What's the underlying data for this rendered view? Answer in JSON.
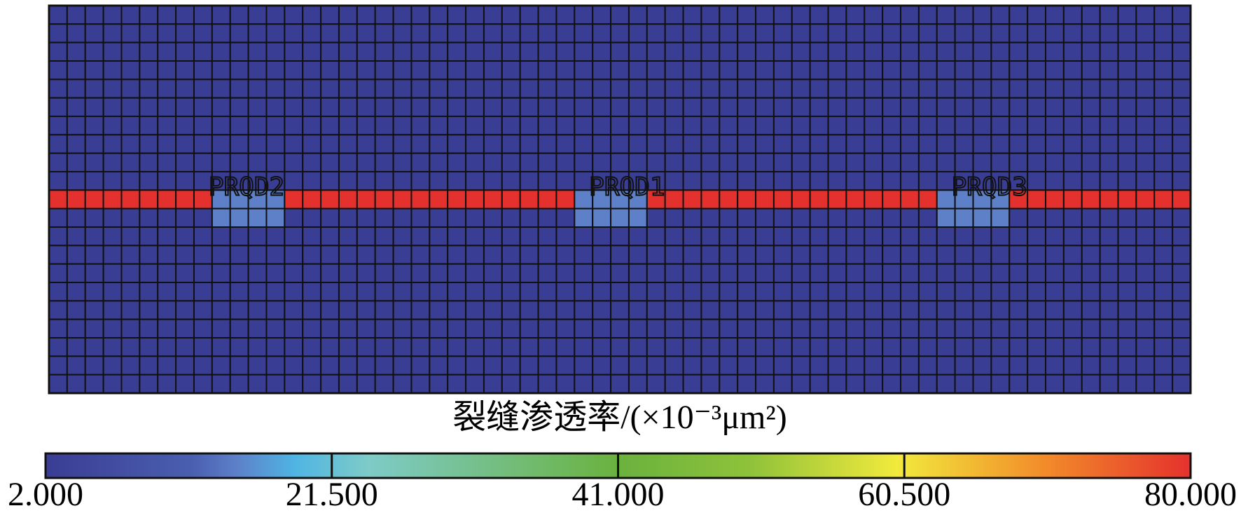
{
  "chart_data": {
    "type": "heatmap",
    "wells": [
      "PRQD2",
      "PRQD1",
      "PRQD3"
    ],
    "z": [
      [
        2,
        2,
        2,
        2,
        2,
        2,
        2,
        2,
        2,
        2,
        2,
        2,
        2,
        2,
        2,
        2,
        2,
        2,
        2,
        2,
        2,
        2,
        2,
        2,
        2,
        2,
        2,
        2,
        2,
        2,
        2,
        2,
        2,
        2,
        2,
        2,
        2,
        2,
        2,
        2,
        2,
        2,
        2,
        2,
        2,
        2,
        2,
        2,
        2,
        2,
        2,
        2,
        2,
        2,
        2,
        2,
        2,
        2,
        2,
        2,
        2,
        2,
        2
      ],
      [
        2,
        2,
        2,
        2,
        2,
        2,
        2,
        2,
        2,
        2,
        2,
        2,
        2,
        2,
        2,
        2,
        2,
        2,
        2,
        2,
        2,
        2,
        2,
        2,
        2,
        2,
        2,
        2,
        2,
        2,
        2,
        2,
        2,
        2,
        2,
        2,
        2,
        2,
        2,
        2,
        2,
        2,
        2,
        2,
        2,
        2,
        2,
        2,
        2,
        2,
        2,
        2,
        2,
        2,
        2,
        2,
        2,
        2,
        2,
        2,
        2,
        2,
        2
      ],
      [
        2,
        2,
        2,
        2,
        2,
        2,
        2,
        2,
        2,
        2,
        2,
        2,
        2,
        2,
        2,
        2,
        2,
        2,
        2,
        2,
        2,
        2,
        2,
        2,
        2,
        2,
        2,
        2,
        2,
        2,
        2,
        2,
        2,
        2,
        2,
        2,
        2,
        2,
        2,
        2,
        2,
        2,
        2,
        2,
        2,
        2,
        2,
        2,
        2,
        2,
        2,
        2,
        2,
        2,
        2,
        2,
        2,
        2,
        2,
        2,
        2,
        2,
        2
      ],
      [
        2,
        2,
        2,
        2,
        2,
        2,
        2,
        2,
        2,
        2,
        2,
        2,
        2,
        2,
        2,
        2,
        2,
        2,
        2,
        2,
        2,
        2,
        2,
        2,
        2,
        2,
        2,
        2,
        2,
        2,
        2,
        2,
        2,
        2,
        2,
        2,
        2,
        2,
        2,
        2,
        2,
        2,
        2,
        2,
        2,
        2,
        2,
        2,
        2,
        2,
        2,
        2,
        2,
        2,
        2,
        2,
        2,
        2,
        2,
        2,
        2,
        2,
        2
      ],
      [
        2,
        2,
        2,
        2,
        2,
        2,
        2,
        2,
        2,
        2,
        2,
        2,
        2,
        2,
        2,
        2,
        2,
        2,
        2,
        2,
        2,
        2,
        2,
        2,
        2,
        2,
        2,
        2,
        2,
        2,
        2,
        2,
        2,
        2,
        2,
        2,
        2,
        2,
        2,
        2,
        2,
        2,
        2,
        2,
        2,
        2,
        2,
        2,
        2,
        2,
        2,
        2,
        2,
        2,
        2,
        2,
        2,
        2,
        2,
        2,
        2,
        2,
        2
      ],
      [
        2,
        2,
        2,
        2,
        2,
        2,
        2,
        2,
        2,
        2,
        2,
        2,
        2,
        2,
        2,
        2,
        2,
        2,
        2,
        2,
        2,
        2,
        2,
        2,
        2,
        2,
        2,
        2,
        2,
        2,
        2,
        2,
        2,
        2,
        2,
        2,
        2,
        2,
        2,
        2,
        2,
        2,
        2,
        2,
        2,
        2,
        2,
        2,
        2,
        2,
        2,
        2,
        2,
        2,
        2,
        2,
        2,
        2,
        2,
        2,
        2,
        2,
        2
      ],
      [
        2,
        2,
        2,
        2,
        2,
        2,
        2,
        2,
        2,
        2,
        2,
        2,
        2,
        2,
        2,
        2,
        2,
        2,
        2,
        2,
        2,
        2,
        2,
        2,
        2,
        2,
        2,
        2,
        2,
        2,
        2,
        2,
        2,
        2,
        2,
        2,
        2,
        2,
        2,
        2,
        2,
        2,
        2,
        2,
        2,
        2,
        2,
        2,
        2,
        2,
        2,
        2,
        2,
        2,
        2,
        2,
        2,
        2,
        2,
        2,
        2,
        2,
        2
      ],
      [
        2,
        2,
        2,
        2,
        2,
        2,
        2,
        2,
        2,
        2,
        2,
        2,
        2,
        2,
        2,
        2,
        2,
        2,
        2,
        2,
        2,
        2,
        2,
        2,
        2,
        2,
        2,
        2,
        2,
        2,
        2,
        2,
        2,
        2,
        2,
        2,
        2,
        2,
        2,
        2,
        2,
        2,
        2,
        2,
        2,
        2,
        2,
        2,
        2,
        2,
        2,
        2,
        2,
        2,
        2,
        2,
        2,
        2,
        2,
        2,
        2,
        2,
        2
      ],
      [
        2,
        2,
        2,
        2,
        2,
        2,
        2,
        2,
        2,
        2,
        2,
        2,
        2,
        2,
        2,
        2,
        2,
        2,
        2,
        2,
        2,
        2,
        2,
        2,
        2,
        2,
        2,
        2,
        2,
        2,
        2,
        2,
        2,
        2,
        2,
        2,
        2,
        2,
        2,
        2,
        2,
        2,
        2,
        2,
        2,
        2,
        2,
        2,
        2,
        2,
        2,
        2,
        2,
        2,
        2,
        2,
        2,
        2,
        2,
        2,
        2,
        2,
        2
      ],
      [
        2,
        2,
        2,
        2,
        2,
        2,
        2,
        2,
        2,
        2,
        2,
        2,
        2,
        2,
        2,
        2,
        2,
        2,
        2,
        2,
        2,
        2,
        2,
        2,
        2,
        2,
        2,
        2,
        2,
        2,
        2,
        2,
        2,
        2,
        2,
        2,
        2,
        2,
        2,
        2,
        2,
        2,
        2,
        2,
        2,
        2,
        2,
        2,
        2,
        2,
        2,
        2,
        2,
        2,
        2,
        2,
        2,
        2,
        2,
        2,
        2,
        2,
        2
      ],
      [
        80,
        80,
        80,
        80,
        80,
        80,
        80,
        80,
        80,
        15,
        15,
        15,
        15,
        80,
        80,
        80,
        80,
        80,
        80,
        80,
        80,
        80,
        80,
        80,
        80,
        80,
        80,
        80,
        80,
        15,
        15,
        15,
        15,
        80,
        80,
        80,
        80,
        80,
        80,
        80,
        80,
        80,
        80,
        80,
        80,
        80,
        80,
        80,
        80,
        15,
        15,
        15,
        15,
        80,
        80,
        80,
        80,
        80,
        80,
        80,
        80,
        80,
        80
      ],
      [
        2,
        2,
        2,
        2,
        2,
        2,
        2,
        2,
        2,
        15,
        15,
        15,
        15,
        2,
        2,
        2,
        2,
        2,
        2,
        2,
        2,
        2,
        2,
        2,
        2,
        2,
        2,
        2,
        2,
        15,
        15,
        15,
        15,
        2,
        2,
        2,
        2,
        2,
        2,
        2,
        2,
        2,
        2,
        2,
        2,
        2,
        2,
        2,
        2,
        15,
        15,
        15,
        15,
        2,
        2,
        2,
        2,
        2,
        2,
        2,
        2,
        2,
        2
      ],
      [
        2,
        2,
        2,
        2,
        2,
        2,
        2,
        2,
        2,
        2,
        2,
        2,
        2,
        2,
        2,
        2,
        2,
        2,
        2,
        2,
        2,
        2,
        2,
        2,
        2,
        2,
        2,
        2,
        2,
        2,
        2,
        2,
        2,
        2,
        2,
        2,
        2,
        2,
        2,
        2,
        2,
        2,
        2,
        2,
        2,
        2,
        2,
        2,
        2,
        2,
        2,
        2,
        2,
        2,
        2,
        2,
        2,
        2,
        2,
        2,
        2,
        2,
        2
      ],
      [
        2,
        2,
        2,
        2,
        2,
        2,
        2,
        2,
        2,
        2,
        2,
        2,
        2,
        2,
        2,
        2,
        2,
        2,
        2,
        2,
        2,
        2,
        2,
        2,
        2,
        2,
        2,
        2,
        2,
        2,
        2,
        2,
        2,
        2,
        2,
        2,
        2,
        2,
        2,
        2,
        2,
        2,
        2,
        2,
        2,
        2,
        2,
        2,
        2,
        2,
        2,
        2,
        2,
        2,
        2,
        2,
        2,
        2,
        2,
        2,
        2,
        2,
        2
      ],
      [
        2,
        2,
        2,
        2,
        2,
        2,
        2,
        2,
        2,
        2,
        2,
        2,
        2,
        2,
        2,
        2,
        2,
        2,
        2,
        2,
        2,
        2,
        2,
        2,
        2,
        2,
        2,
        2,
        2,
        2,
        2,
        2,
        2,
        2,
        2,
        2,
        2,
        2,
        2,
        2,
        2,
        2,
        2,
        2,
        2,
        2,
        2,
        2,
        2,
        2,
        2,
        2,
        2,
        2,
        2,
        2,
        2,
        2,
        2,
        2,
        2,
        2,
        2
      ],
      [
        2,
        2,
        2,
        2,
        2,
        2,
        2,
        2,
        2,
        2,
        2,
        2,
        2,
        2,
        2,
        2,
        2,
        2,
        2,
        2,
        2,
        2,
        2,
        2,
        2,
        2,
        2,
        2,
        2,
        2,
        2,
        2,
        2,
        2,
        2,
        2,
        2,
        2,
        2,
        2,
        2,
        2,
        2,
        2,
        2,
        2,
        2,
        2,
        2,
        2,
        2,
        2,
        2,
        2,
        2,
        2,
        2,
        2,
        2,
        2,
        2,
        2,
        2
      ],
      [
        2,
        2,
        2,
        2,
        2,
        2,
        2,
        2,
        2,
        2,
        2,
        2,
        2,
        2,
        2,
        2,
        2,
        2,
        2,
        2,
        2,
        2,
        2,
        2,
        2,
        2,
        2,
        2,
        2,
        2,
        2,
        2,
        2,
        2,
        2,
        2,
        2,
        2,
        2,
        2,
        2,
        2,
        2,
        2,
        2,
        2,
        2,
        2,
        2,
        2,
        2,
        2,
        2,
        2,
        2,
        2,
        2,
        2,
        2,
        2,
        2,
        2,
        2
      ],
      [
        2,
        2,
        2,
        2,
        2,
        2,
        2,
        2,
        2,
        2,
        2,
        2,
        2,
        2,
        2,
        2,
        2,
        2,
        2,
        2,
        2,
        2,
        2,
        2,
        2,
        2,
        2,
        2,
        2,
        2,
        2,
        2,
        2,
        2,
        2,
        2,
        2,
        2,
        2,
        2,
        2,
        2,
        2,
        2,
        2,
        2,
        2,
        2,
        2,
        2,
        2,
        2,
        2,
        2,
        2,
        2,
        2,
        2,
        2,
        2,
        2,
        2,
        2
      ],
      [
        2,
        2,
        2,
        2,
        2,
        2,
        2,
        2,
        2,
        2,
        2,
        2,
        2,
        2,
        2,
        2,
        2,
        2,
        2,
        2,
        2,
        2,
        2,
        2,
        2,
        2,
        2,
        2,
        2,
        2,
        2,
        2,
        2,
        2,
        2,
        2,
        2,
        2,
        2,
        2,
        2,
        2,
        2,
        2,
        2,
        2,
        2,
        2,
        2,
        2,
        2,
        2,
        2,
        2,
        2,
        2,
        2,
        2,
        2,
        2,
        2,
        2,
        2
      ],
      [
        2,
        2,
        2,
        2,
        2,
        2,
        2,
        2,
        2,
        2,
        2,
        2,
        2,
        2,
        2,
        2,
        2,
        2,
        2,
        2,
        2,
        2,
        2,
        2,
        2,
        2,
        2,
        2,
        2,
        2,
        2,
        2,
        2,
        2,
        2,
        2,
        2,
        2,
        2,
        2,
        2,
        2,
        2,
        2,
        2,
        2,
        2,
        2,
        2,
        2,
        2,
        2,
        2,
        2,
        2,
        2,
        2,
        2,
        2,
        2,
        2,
        2,
        2
      ],
      [
        2,
        2,
        2,
        2,
        2,
        2,
        2,
        2,
        2,
        2,
        2,
        2,
        2,
        2,
        2,
        2,
        2,
        2,
        2,
        2,
        2,
        2,
        2,
        2,
        2,
        2,
        2,
        2,
        2,
        2,
        2,
        2,
        2,
        2,
        2,
        2,
        2,
        2,
        2,
        2,
        2,
        2,
        2,
        2,
        2,
        2,
        2,
        2,
        2,
        2,
        2,
        2,
        2,
        2,
        2,
        2,
        2,
        2,
        2,
        2,
        2,
        2,
        2
      ]
    ],
    "colorbar_title": "裂缝渗透率/(×10⁻³μm²)",
    "zlim": [
      2,
      80
    ],
    "zticks": [
      {
        "value": 2,
        "label": "2.000"
      },
      {
        "value": 21.5,
        "label": "21.500"
      },
      {
        "value": 41,
        "label": "41.000"
      },
      {
        "value": 60.5,
        "label": "60.500"
      },
      {
        "value": 80,
        "label": "80.000"
      }
    ],
    "colorscale": [
      [
        2,
        "#3a3d94"
      ],
      [
        12,
        "#4a5fb0"
      ],
      [
        15,
        "#5d80c9"
      ],
      [
        19,
        "#4fb5e3"
      ],
      [
        24,
        "#7ecbc8"
      ],
      [
        41,
        "#6ab23e"
      ],
      [
        50,
        "#8fc23a"
      ],
      [
        60,
        "#f2ea3c"
      ],
      [
        70,
        "#f28c2a"
      ],
      [
        80,
        "#e5312d"
      ]
    ]
  }
}
